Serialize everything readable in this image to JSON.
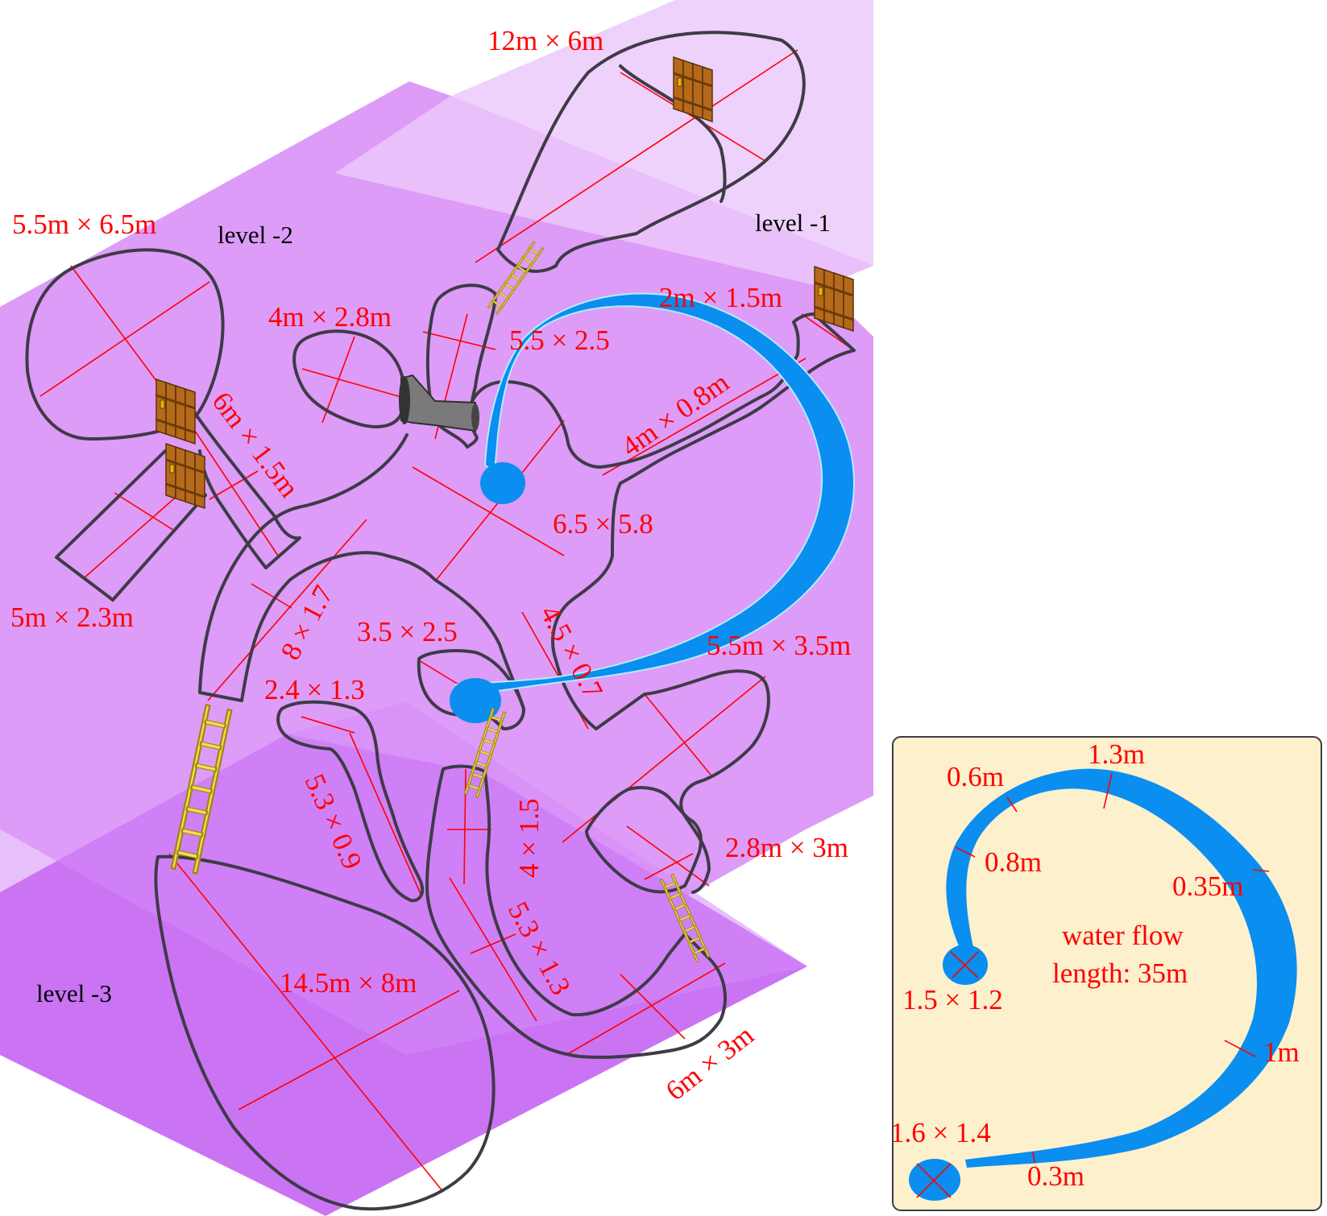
{
  "levels": {
    "level_1": "level -1",
    "level_2": "level -2",
    "level_3": "level -3"
  },
  "colors": {
    "level_1_plane": "#efd2fb",
    "level_2_plane": "#dd9cf8",
    "level_3_plane": "#ca74f4",
    "cave_outline": "#3e3b47",
    "measurement": "#ff0000",
    "water": "#0a8ef0",
    "inset_background": "#fdf0cc"
  },
  "rooms": {
    "top_chamber": "12m × 6m",
    "west_round": "5.5m × 6.5m",
    "west_passage": "6m × 1.5m",
    "west_corridor": "5m × 2.3m",
    "small_chamber": "4m × 2.8m",
    "north_passage": "5.5 × 2.5",
    "east_nook": "2m × 1.5m",
    "east_passage": "4m × 0.8m",
    "central_chamber": "6.5 × 5.8",
    "diagonal_passage": "8 × 1.7",
    "pool_room": "3.5 × 2.5",
    "narrow_passage": "4.5 × 0.7",
    "east_chamber": "5.5m × 3.5m",
    "small_loop": "2.4 × 1.3",
    "loop_passage": "5.3 × 0.9",
    "short_passage": "4 × 1.5",
    "lower_passage": "5.3 × 1.3",
    "south_east_room": "2.8m × 3m",
    "big_chamber": "14.5m × 8m",
    "end_room": "6m × 3m"
  },
  "inset": {
    "title_line1": "water flow",
    "title_line2": "length: 35m",
    "pool_top": "1.5 × 1.2",
    "pool_bottom": "1.6 × 1.4",
    "widths": {
      "w1": "0.6m",
      "w2": "1.3m",
      "w3": "0.8m",
      "w4": "0.35m",
      "w5": "1m",
      "w6": "0.3m"
    }
  },
  "icons": {
    "ladder": "ladder-icon",
    "door": "wooden-door-icon",
    "funnel": "funnel-icon"
  }
}
